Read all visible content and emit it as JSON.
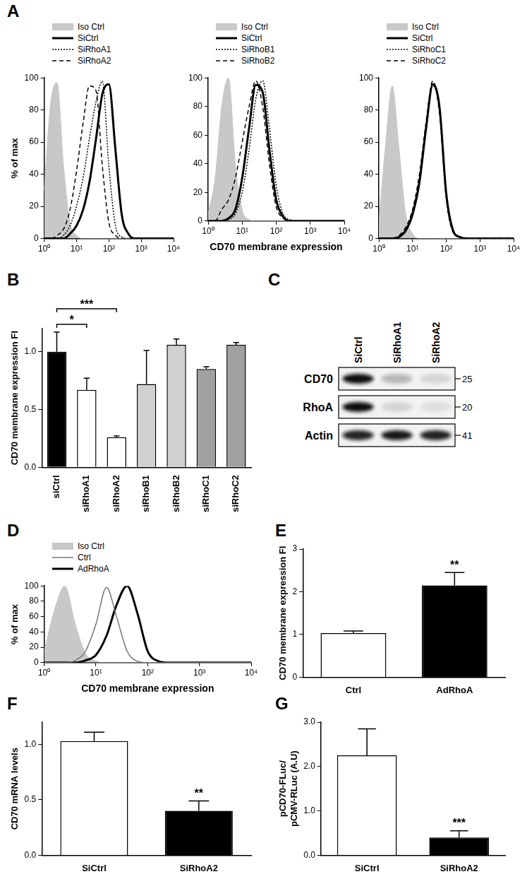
{
  "chart_data": [
    {
      "title": "A",
      "type": "line",
      "y_label": "% of max",
      "x": [
        1,
        1.6,
        2.5,
        4,
        6.3,
        10,
        16,
        25,
        40,
        63,
        100,
        160,
        250,
        400,
        630,
        1000,
        1600,
        2500,
        4000,
        6300,
        10000
      ],
      "xlim": [
        1,
        10000
      ],
      "xticks": [
        {
          "value": 1,
          "label": "10⁰"
        },
        {
          "value": 10,
          "label": "10¹"
        },
        {
          "value": 100,
          "label": "10²"
        },
        {
          "value": 1000,
          "label": "10³"
        },
        {
          "value": 10000,
          "label": "10⁴"
        }
      ],
      "ylim": [
        0,
        100
      ],
      "yticks": [
        0,
        20,
        40,
        60,
        80,
        100
      ],
      "log": "x",
      "grid": false,
      "legend": "top left",
      "series": [
        {
          "name": "Iso Ctrl",
          "type": "area",
          "color": "#c8c8c8",
          "values": [
            30,
            85,
            97,
            45,
            10,
            2,
            0,
            0,
            0,
            0,
            0,
            0,
            0,
            0,
            0,
            0,
            0,
            0,
            0,
            0,
            0
          ]
        },
        {
          "name": "SiCtrl",
          "color": "#000000",
          "line_style": "solid",
          "values": [
            0,
            0,
            0,
            0,
            3,
            8,
            18,
            35,
            62,
            90,
            96,
            55,
            15,
            3,
            0,
            0,
            0,
            0,
            0,
            0,
            0
          ]
        },
        {
          "name": "SiRhoA1",
          "color": "#000000",
          "line_style": "dotted",
          "values": [
            0,
            0,
            0,
            2,
            8,
            20,
            38,
            62,
            85,
            98,
            45,
            8,
            1,
            0,
            0,
            0,
            0,
            0,
            0,
            0,
            0
          ]
        },
        {
          "name": "SiRhoA2",
          "color": "#000000",
          "line_style": "dashed",
          "values": [
            0,
            0,
            2,
            6,
            18,
            42,
            72,
            95,
            92,
            45,
            10,
            2,
            0,
            0,
            0,
            0,
            0,
            0,
            0,
            0,
            0
          ]
        }
      ]
    },
    {
      "type": "line",
      "x_label": "CD70 membrane expression",
      "x": [
        1,
        1.6,
        2.5,
        4,
        6.3,
        10,
        16,
        25,
        40,
        63,
        100,
        160,
        250,
        400,
        630,
        1000,
        1600,
        2500,
        4000,
        6300,
        10000
      ],
      "xlim": [
        1,
        10000
      ],
      "xticks": [
        {
          "value": 1,
          "label": "10⁰"
        },
        {
          "value": 10,
          "label": "10¹"
        },
        {
          "value": 100,
          "label": "10²"
        },
        {
          "value": 1000,
          "label": "10³"
        },
        {
          "value": 10000,
          "label": "10⁴"
        }
      ],
      "ylim": [
        0,
        100
      ],
      "yticks": [
        0,
        20,
        40,
        60,
        80,
        100
      ],
      "log": "x",
      "grid": false,
      "legend": "top left",
      "series": [
        {
          "name": "Iso Ctrl",
          "type": "area",
          "color": "#c8c8c8",
          "values": [
            5,
            30,
            80,
            100,
            40,
            8,
            1,
            0,
            0,
            0,
            0,
            0,
            0,
            0,
            0,
            0,
            0,
            0,
            0,
            0,
            0
          ]
        },
        {
          "name": "SiCtrl",
          "color": "#000000",
          "line_style": "solid",
          "values": [
            0,
            0,
            0,
            2,
            8,
            30,
            65,
            95,
            90,
            50,
            15,
            3,
            0,
            0,
            0,
            0,
            0,
            0,
            0,
            0,
            0
          ]
        },
        {
          "name": "SiRhoB1",
          "color": "#000000",
          "line_style": "dotted",
          "values": [
            0,
            0,
            0,
            1,
            5,
            20,
            50,
            85,
            98,
            65,
            25,
            5,
            1,
            0,
            0,
            0,
            0,
            0,
            0,
            0,
            0
          ]
        },
        {
          "name": "SiRhoB2",
          "color": "#000000",
          "line_style": "dashed",
          "values": [
            0,
            0,
            8,
            15,
            30,
            55,
            80,
            98,
            80,
            40,
            10,
            2,
            0,
            0,
            0,
            0,
            0,
            0,
            0,
            0,
            0
          ]
        }
      ]
    },
    {
      "type": "line",
      "x": [
        1,
        1.6,
        2.5,
        4,
        6.3,
        10,
        16,
        25,
        40,
        63,
        100,
        160,
        250,
        400,
        630,
        1000,
        1600,
        2500,
        4000,
        6300,
        10000
      ],
      "xlim": [
        1,
        10000
      ],
      "xticks": [
        {
          "value": 1,
          "label": "10⁰"
        },
        {
          "value": 10,
          "label": "10¹"
        },
        {
          "value": 100,
          "label": "10²"
        },
        {
          "value": 1000,
          "label": "10³"
        },
        {
          "value": 10000,
          "label": "10⁴"
        }
      ],
      "ylim": [
        0,
        100
      ],
      "yticks": [
        0,
        20,
        40,
        60,
        80,
        100
      ],
      "log": "x",
      "grid": false,
      "legend": "top left",
      "series": [
        {
          "name": "Iso Ctrl",
          "type": "area",
          "color": "#c8c8c8",
          "values": [
            10,
            60,
            95,
            55,
            15,
            3,
            0,
            0,
            0,
            0,
            0,
            0,
            0,
            0,
            0,
            0,
            0,
            0,
            0,
            0,
            0
          ]
        },
        {
          "name": "SiCtrl",
          "color": "#000000",
          "line_style": "solid",
          "values": [
            0,
            0,
            0,
            1,
            5,
            15,
            35,
            68,
            96,
            82,
            28,
            5,
            1,
            0,
            0,
            0,
            0,
            0,
            0,
            0,
            0
          ]
        },
        {
          "name": "SiRhoC1",
          "color": "#000000",
          "line_style": "dotted",
          "values": [
            0,
            0,
            0,
            1,
            6,
            17,
            38,
            70,
            95,
            80,
            26,
            4,
            1,
            0,
            0,
            0,
            0,
            0,
            0,
            0,
            0
          ]
        },
        {
          "name": "SiRhoC2",
          "color": "#000000",
          "line_style": "dashed",
          "values": [
            0,
            0,
            0,
            2,
            7,
            18,
            40,
            72,
            98,
            78,
            25,
            4,
            1,
            0,
            0,
            0,
            0,
            0,
            0,
            0,
            0
          ]
        }
      ]
    },
    {
      "title": "B",
      "type": "bar",
      "y_label": "CD70 membrane expression FI",
      "categories": [
        "siCtrl",
        "siRhoA1",
        "siRhoA2",
        "siRhoB1",
        "siRhoB2",
        "siRhoC1",
        "siRhoC2"
      ],
      "values": [
        1.0,
        0.67,
        0.26,
        0.72,
        1.06,
        0.85,
        1.06
      ],
      "errors": [
        0.17,
        0.1,
        0.01,
        0.29,
        0.05,
        0.02,
        0.02
      ],
      "colors": [
        "#000000",
        "#ffffff",
        "#ffffff",
        "#d0d0d0",
        "#d0d0d0",
        "#a0a0a0",
        "#a0a0a0"
      ],
      "ylim": [
        0,
        1.2
      ],
      "yticks": [
        {
          "value": 0,
          "label": "0.0"
        },
        {
          "value": 0.5,
          "label": "0.5"
        },
        {
          "value": 1,
          "label": "1.0"
        }
      ],
      "grid": false,
      "annotations": [
        {
          "text": "***",
          "from": "siCtrl",
          "to": "siRhoA2"
        },
        {
          "text": "*",
          "from": "siCtrl",
          "to": "siRhoA1"
        }
      ]
    },
    {
      "title": "D",
      "type": "line",
      "y_label": "% of max",
      "x_label": "CD70 membrane expression",
      "x": [
        1,
        1.6,
        2.5,
        4,
        6.3,
        10,
        16,
        25,
        40,
        63,
        100,
        160,
        250,
        400,
        630,
        1000,
        1600,
        2500,
        4000,
        6300,
        10000
      ],
      "xlim": [
        1,
        10000
      ],
      "xticks": [
        {
          "value": 1,
          "label": "10⁰"
        },
        {
          "value": 10,
          "label": "10¹"
        },
        {
          "value": 100,
          "label": "10²"
        },
        {
          "value": 1000,
          "label": "10³"
        },
        {
          "value": 10000,
          "label": "10⁴"
        }
      ],
      "ylim": [
        0,
        100
      ],
      "yticks": [
        0,
        20,
        40,
        60,
        80,
        100
      ],
      "log": "x",
      "grid": false,
      "legend": "top left",
      "series": [
        {
          "name": "Iso Ctrl",
          "type": "area",
          "color": "#c8c8c8",
          "values": [
            15,
            70,
            100,
            50,
            12,
            2,
            0,
            0,
            0,
            0,
            0,
            0,
            0,
            0,
            0,
            0,
            0,
            0,
            0,
            0,
            0
          ]
        },
        {
          "name": "Ctrl",
          "color": "#777777",
          "line_style": "solid",
          "values": [
            0,
            0,
            0,
            3,
            15,
            50,
            98,
            60,
            15,
            2,
            0,
            0,
            0,
            0,
            0,
            0,
            0,
            0,
            0,
            0,
            0
          ]
        },
        {
          "name": "AdRhoA",
          "color": "#000000",
          "line_style": "solid",
          "values": [
            0,
            0,
            0,
            0,
            3,
            10,
            35,
            75,
            100,
            65,
            15,
            2,
            0,
            0,
            0,
            0,
            0,
            0,
            0,
            0,
            0
          ]
        }
      ]
    },
    {
      "title": "E",
      "type": "bar",
      "y_label": "CD70 membrane expression FI",
      "categories": [
        "Ctrl",
        "AdRhoA"
      ],
      "values": [
        1.03,
        2.15
      ],
      "errors": [
        0.05,
        0.3
      ],
      "colors": [
        "#ffffff",
        "#000000"
      ],
      "ylim": [
        0,
        3
      ],
      "yticks": [
        0,
        1,
        2,
        3
      ],
      "grid": false,
      "annotations": [
        {
          "text": "**",
          "category": "AdRhoA"
        }
      ]
    },
    {
      "title": "F",
      "type": "bar",
      "y_label": "CD70 mRNA levels",
      "categories": [
        "SiCtrl",
        "SiRhoA2"
      ],
      "values": [
        1.03,
        0.4
      ],
      "errors": [
        0.08,
        0.09
      ],
      "colors": [
        "#ffffff",
        "#000000"
      ],
      "ylim": [
        0,
        1.2
      ],
      "yticks": [
        {
          "value": 0,
          "label": "0.0"
        },
        {
          "value": 0.5,
          "label": "0.5"
        },
        {
          "value": 1,
          "label": "1.0"
        }
      ],
      "grid": false,
      "annotations": [
        {
          "text": "**",
          "category": "SiRhoA2"
        }
      ]
    },
    {
      "title": "G",
      "type": "bar",
      "y_label": [
        "pCD70-FLuc/",
        "pCMV-RLuc (A.U)"
      ],
      "categories": [
        "SiCtrl",
        "SiRhoA2"
      ],
      "values": [
        2.25,
        0.4
      ],
      "errors": [
        0.6,
        0.15
      ],
      "colors": [
        "#ffffff",
        "#000000"
      ],
      "ylim": [
        0,
        3
      ],
      "yticks": [
        {
          "value": 0,
          "label": "0.0"
        },
        {
          "value": 1,
          "label": "1.0"
        },
        {
          "value": 2,
          "label": "2.0"
        },
        {
          "value": 3,
          "label": "3.0"
        }
      ],
      "grid": false,
      "annotations": [
        {
          "text": "***",
          "category": "SiRhoA2"
        }
      ]
    }
  ],
  "blot": {
    "title": "C",
    "lanes": [
      "SiCtrl",
      "SiRhoA1",
      "SiRhoA2"
    ],
    "rows": [
      {
        "label": "CD70",
        "size": 25,
        "intensity": [
          1.0,
          0.25,
          0.12
        ]
      },
      {
        "label": "RhoA",
        "size": 20,
        "intensity": [
          1.0,
          0.12,
          0.08
        ]
      },
      {
        "label": "Actin",
        "size": 41,
        "intensity": [
          0.9,
          0.95,
          0.9
        ]
      }
    ]
  }
}
